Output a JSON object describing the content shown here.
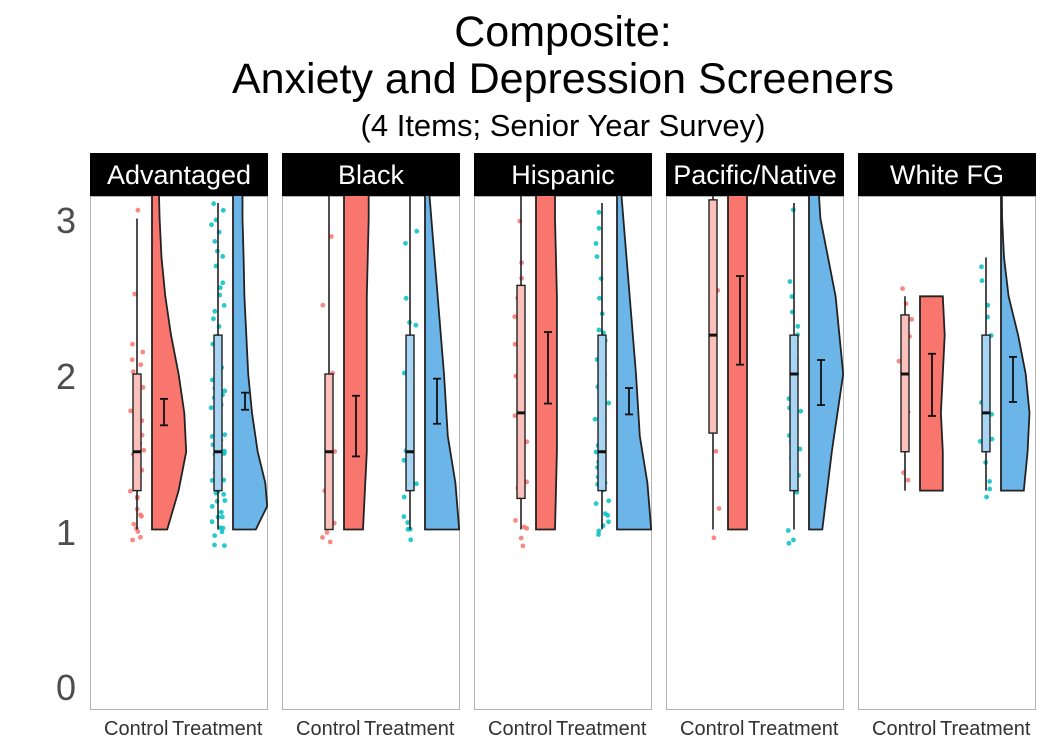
{
  "chart_data": {
    "type": "raincloud",
    "title": [
      "Composite:",
      "Anxiety and Depression Screeners"
    ],
    "subtitle": "(4 Items; Senior Year Survey)",
    "ylim": [
      0,
      3.15
    ],
    "y_ticks": [
      0,
      1,
      2,
      3
    ],
    "categories": [
      "Control",
      "Treatment"
    ],
    "colors": {
      "Control": "#f8766d",
      "Treatment": "#00bfc4",
      "Treatment_half_violin": "#6bb5e8",
      "strip_bg": "#000000",
      "strip_text": "#ffffff",
      "panel_border": "#b3b3b3"
    },
    "panels": [
      {
        "label": "Advantaged",
        "groups": [
          {
            "name": "Control",
            "box": {
              "min": 1.0,
              "q1": 1.25,
              "median": 1.5,
              "q3": 2.0,
              "max": 3.0
            },
            "mean": 1.75,
            "ci": [
              1.67,
              1.84
            ],
            "density": [
              [
                1.0,
                0.0
              ],
              [
                1.0,
                0.4
              ],
              [
                1.25,
                0.7
              ],
              [
                1.5,
                0.9
              ],
              [
                1.75,
                0.85
              ],
              [
                2.0,
                0.7
              ],
              [
                2.25,
                0.5
              ],
              [
                2.5,
                0.35
              ],
              [
                2.75,
                0.25
              ],
              [
                3.0,
                0.2
              ],
              [
                3.2,
                0.18
              ]
            ],
            "points": [
              0.92,
              0.95,
              1.0,
              1.02,
              1.05,
              1.07,
              1.1,
              1.15,
              1.2,
              1.22,
              1.25,
              1.28,
              1.3,
              1.35,
              1.38,
              1.45,
              1.5,
              1.5,
              1.52,
              1.55,
              1.6,
              1.7,
              1.75,
              1.8,
              1.9,
              2.0,
              2.05,
              2.1,
              2.15,
              2.2,
              2.5,
              3.05
            ]
          },
          {
            "name": "Treatment",
            "box": {
              "min": 1.0,
              "q1": 1.25,
              "median": 1.5,
              "q3": 2.25,
              "max": 3.1
            },
            "mean": 1.82,
            "ci": [
              1.77,
              1.88
            ],
            "density": [
              [
                1.0,
                0.0
              ],
              [
                1.0,
                0.6
              ],
              [
                1.15,
                0.9
              ],
              [
                1.3,
                0.85
              ],
              [
                1.5,
                0.65
              ],
              [
                1.75,
                0.5
              ],
              [
                2.0,
                0.4
              ],
              [
                2.25,
                0.35
              ],
              [
                2.5,
                0.3
              ],
              [
                2.75,
                0.28
              ],
              [
                3.0,
                0.25
              ],
              [
                3.2,
                0.25
              ]
            ],
            "points": [
              0.9,
              0.92,
              0.95,
              0.98,
              1.0,
              1.02,
              1.05,
              1.08,
              1.1,
              1.12,
              1.15,
              1.18,
              1.2,
              1.22,
              1.25,
              1.25,
              1.28,
              1.3,
              1.32,
              1.35,
              1.38,
              1.4,
              1.42,
              1.45,
              1.48,
              1.5,
              1.52,
              1.55,
              1.58,
              1.6,
              1.62,
              1.65,
              1.68,
              1.7,
              1.72,
              1.75,
              1.78,
              1.8,
              1.82,
              1.85,
              1.88,
              1.9,
              1.92,
              1.95,
              1.98,
              2.0,
              2.02,
              2.05,
              2.1,
              2.15,
              2.2,
              2.25,
              2.3,
              2.35,
              2.4,
              2.45,
              2.5,
              2.55,
              2.6,
              2.7,
              2.75,
              2.8,
              2.85,
              2.9,
              2.95,
              3.0,
              3.05,
              3.1
            ]
          }
        ]
      },
      {
        "label": "Black",
        "groups": [
          {
            "name": "Control",
            "box": {
              "min": 1.0,
              "q1": 1.0,
              "median": 1.5,
              "q3": 2.0,
              "max": 3.15
            },
            "mean": 1.67,
            "ci": [
              1.47,
              1.86
            ],
            "density": [
              [
                1.0,
                0.0
              ],
              [
                1.0,
                0.5
              ],
              [
                1.5,
                0.6
              ],
              [
                2.0,
                0.6
              ],
              [
                2.5,
                0.6
              ],
              [
                3.0,
                0.65
              ],
              [
                3.2,
                0.65
              ]
            ],
            "points": [
              0.92,
              0.95,
              1.0,
              1.05,
              1.25,
              1.5,
              1.75,
              2.0,
              2.45,
              2.9
            ]
          },
          {
            "name": "Treatment",
            "box": {
              "min": 1.0,
              "q1": 1.25,
              "median": 1.5,
              "q3": 2.25,
              "max": 3.15
            },
            "mean": 1.82,
            "ci": [
              1.68,
              1.97
            ],
            "density": [
              [
                1.0,
                0.0
              ],
              [
                1.0,
                0.9
              ],
              [
                1.3,
                0.8
              ],
              [
                1.6,
                0.6
              ],
              [
                2.0,
                0.5
              ],
              [
                2.3,
                0.4
              ],
              [
                2.6,
                0.3
              ],
              [
                2.9,
                0.2
              ],
              [
                3.2,
                0.1
              ]
            ],
            "points": [
              0.92,
              1.0,
              1.02,
              1.05,
              1.1,
              1.2,
              1.3,
              1.45,
              1.5,
              1.6,
              1.65,
              1.75,
              2.0,
              2.25,
              2.3,
              2.35,
              2.5,
              2.85,
              2.9
            ]
          }
        ]
      },
      {
        "label": "Hispanic",
        "groups": [
          {
            "name": "Control",
            "box": {
              "min": 1.0,
              "q1": 1.2,
              "median": 1.75,
              "q3": 2.57,
              "max": 3.15
            },
            "mean": 2.04,
            "ci": [
              1.81,
              2.27
            ],
            "density": [
              [
                1.0,
                0.0
              ],
              [
                1.0,
                0.5
              ],
              [
                1.5,
                0.55
              ],
              [
                2.0,
                0.55
              ],
              [
                2.5,
                0.55
              ],
              [
                3.0,
                0.5
              ],
              [
                3.2,
                0.5
              ]
            ],
            "points": [
              0.9,
              0.95,
              1.0,
              1.02,
              1.05,
              1.25,
              1.3,
              1.5,
              1.55,
              1.75,
              2.0,
              2.2,
              2.35,
              2.5,
              2.6,
              2.7,
              3.0
            ]
          },
          {
            "name": "Treatment",
            "box": {
              "min": 1.0,
              "q1": 1.25,
              "median": 1.5,
              "q3": 2.25,
              "max": 3.1
            },
            "mean": 1.82,
            "ci": [
              1.74,
              1.91
            ],
            "density": [
              [
                1.0,
                0.0
              ],
              [
                1.0,
                0.9
              ],
              [
                1.3,
                0.8
              ],
              [
                1.6,
                0.6
              ],
              [
                2.0,
                0.5
              ],
              [
                2.3,
                0.4
              ],
              [
                2.6,
                0.3
              ],
              [
                2.9,
                0.2
              ],
              [
                3.2,
                0.1
              ]
            ],
            "points": [
              0.95,
              1.0,
              1.02,
              1.05,
              1.08,
              1.1,
              1.15,
              1.2,
              1.25,
              1.28,
              1.3,
              1.35,
              1.4,
              1.45,
              1.5,
              1.52,
              1.55,
              1.6,
              1.65,
              1.7,
              1.75,
              1.8,
              1.85,
              1.9,
              1.95,
              2.0,
              2.05,
              2.1,
              2.2,
              2.25,
              2.3,
              2.4,
              2.5,
              2.6,
              2.75,
              2.85,
              2.95,
              3.05
            ]
          }
        ]
      },
      {
        "label": "Pacific/Native",
        "groups": [
          {
            "name": "Control",
            "box": {
              "min": 1.0,
              "q1": 1.62,
              "median": 2.25,
              "q3": 3.12,
              "max": 3.15
            },
            "mean": 2.34,
            "ci": [
              2.06,
              2.63
            ],
            "density": [
              [
                1.0,
                0.0
              ],
              [
                1.0,
                0.5
              ],
              [
                1.5,
                0.5
              ],
              [
                2.0,
                0.5
              ],
              [
                2.5,
                0.5
              ],
              [
                3.0,
                0.5
              ],
              [
                3.2,
                0.5
              ]
            ],
            "points": [
              0.93,
              1.15,
              1.5,
              2.0,
              2.25,
              2.55
            ]
          },
          {
            "name": "Treatment",
            "box": {
              "min": 1.0,
              "q1": 1.25,
              "median": 2.0,
              "q3": 2.25,
              "max": 3.1
            },
            "mean": 1.95,
            "ci": [
              1.8,
              2.09
            ],
            "density": [
              [
                1.0,
                0.0
              ],
              [
                1.0,
                0.35
              ],
              [
                1.5,
                0.6
              ],
              [
                2.0,
                0.9
              ],
              [
                2.5,
                0.7
              ],
              [
                3.0,
                0.3
              ],
              [
                3.2,
                0.25
              ]
            ],
            "points": [
              0.92,
              0.95,
              1.0,
              1.25,
              1.35,
              1.45,
              1.5,
              1.55,
              1.6,
              1.75,
              1.8,
              1.85,
              2.0,
              2.05,
              2.1,
              2.15,
              2.25,
              2.3,
              2.4,
              2.5,
              2.6,
              3.05
            ]
          }
        ]
      },
      {
        "label": "White FG",
        "groups": [
          {
            "name": "Control",
            "box": {
              "min": 1.25,
              "q1": 1.5,
              "median": 2.0,
              "q3": 2.38,
              "max": 2.5
            },
            "mean": 1.93,
            "ci": [
              1.73,
              2.13
            ],
            "density": [
              [
                1.25,
                0.0
              ],
              [
                1.25,
                0.6
              ],
              [
                1.5,
                0.6
              ],
              [
                1.75,
                0.55
              ],
              [
                2.0,
                0.6
              ],
              [
                2.25,
                0.65
              ],
              [
                2.5,
                0.6
              ],
              [
                2.5,
                0.0
              ]
            ],
            "points": [
              1.3,
              1.35,
              1.75,
              2.0,
              2.1,
              2.25,
              2.35,
              2.45,
              2.55
            ]
          },
          {
            "name": "Treatment",
            "box": {
              "min": 1.25,
              "q1": 1.5,
              "median": 1.75,
              "q3": 2.25,
              "max": 2.75
            },
            "mean": 1.96,
            "ci": [
              1.82,
              2.11
            ],
            "density": [
              [
                1.25,
                0.0
              ],
              [
                1.25,
                0.6
              ],
              [
                1.5,
                0.7
              ],
              [
                1.75,
                0.75
              ],
              [
                2.0,
                0.65
              ],
              [
                2.25,
                0.45
              ],
              [
                2.5,
                0.2
              ],
              [
                2.75,
                0.08
              ],
              [
                3.0,
                0.03
              ],
              [
                3.2,
                0.02
              ]
            ],
            "points": [
              1.22,
              1.25,
              1.3,
              1.45,
              1.55,
              1.6,
              1.75,
              1.8,
              1.9,
              2.0,
              2.1,
              2.25,
              2.35,
              2.45,
              2.6,
              2.7
            ]
          }
        ]
      }
    ]
  }
}
